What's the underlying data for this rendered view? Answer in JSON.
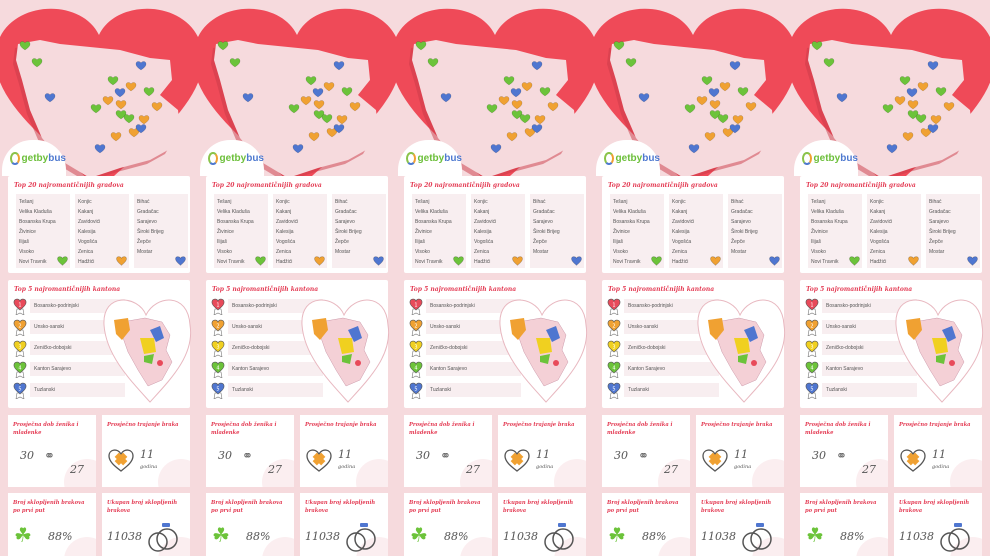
{
  "logo": {
    "brand_a": "getby",
    "brand_b": "bus"
  },
  "cities": {
    "title": "Top 20 najromantičnijih gradova",
    "columns": [
      {
        "items": [
          "Tešanj",
          "Velika Kladuša",
          "Bosanska Krupa",
          "Živinice",
          "Ilijaš",
          "Visoko",
          "Novi Travnik"
        ],
        "color": "#6cc33a"
      },
      {
        "items": [
          "Konjic",
          "Kakanj",
          "Zavidovići",
          "Kalesija",
          "Vogošća",
          "Zenica",
          "Hadžići"
        ],
        "color": "#f0a132"
      },
      {
        "items": [
          "Bihać",
          "Gradačac",
          "Sarajevo",
          "Široki Brijeg",
          "Žepče",
          "Mostar"
        ],
        "color": "#4f76d0"
      }
    ]
  },
  "cantons": {
    "title": "Top 5 najromantičnijih kantona",
    "items": [
      {
        "rank": "1",
        "label": "Bosansko-podrinjski",
        "color": "#e84a5a"
      },
      {
        "rank": "2",
        "label": "Unsko-sanski",
        "color": "#f0a132"
      },
      {
        "rank": "3",
        "label": "Zeničko-dobojski",
        "color": "#f0d020"
      },
      {
        "rank": "4",
        "label": "Kanton Sarajevo",
        "color": "#6cc33a"
      },
      {
        "rank": "5",
        "label": "Tuzlanski",
        "color": "#4f76d0"
      }
    ]
  },
  "stats": {
    "age": {
      "title": "Prosječna dob ženika i mladenke",
      "groom": "30",
      "bride": "27"
    },
    "duration": {
      "title": "Prosječno trajanje braka",
      "value": "11",
      "unit": "godina"
    },
    "first": {
      "title": "Broj sklopljenih brakova po prvi put",
      "value": "88%"
    },
    "total": {
      "title": "Ukupan broj sklopljenih brakova",
      "value": "11038"
    }
  },
  "colors": {
    "red": "#ef4a58",
    "pink_bg": "#f6dadd",
    "title": "#e43e56"
  }
}
